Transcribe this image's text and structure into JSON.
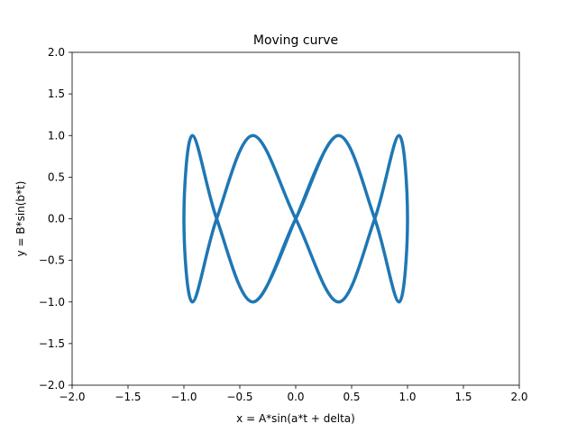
{
  "chart_data": {
    "type": "line",
    "title": "Moving curve",
    "xlabel": "x = A*sin(a*t + delta)",
    "ylabel": "y = B*sin(b*t)",
    "xlim": [
      -2.0,
      2.0
    ],
    "ylim": [
      -2.0,
      2.0
    ],
    "xticks": [
      -2.0,
      -1.5,
      -1.0,
      -0.5,
      0.0,
      0.5,
      1.0,
      1.5,
      2.0
    ],
    "xtick_labels": [
      "−2.0",
      "−1.5",
      "−1.0",
      "−0.5",
      "0.0",
      "0.5",
      "1.0",
      "1.5",
      "2.0"
    ],
    "yticks": [
      -2.0,
      -1.5,
      -1.0,
      -0.5,
      0.0,
      0.5,
      1.0,
      1.5,
      2.0
    ],
    "ytick_labels": [
      "−2.0",
      "−1.5",
      "−1.0",
      "−0.5",
      "0.0",
      "0.5",
      "1.0",
      "1.5",
      "2.0"
    ],
    "grid": false,
    "series": [
      {
        "color": "#1f77b4",
        "x": [
          0.0,
          0.383,
          0.707,
          0.924,
          1.0,
          0.924,
          0.707,
          0.383,
          0.0,
          -0.383,
          -0.707,
          -0.924,
          -1.0,
          -0.924,
          -0.707,
          -0.383,
          0.0,
          0.383,
          0.707,
          0.924,
          1.0,
          0.924,
          0.707,
          0.383,
          0.0,
          -0.383,
          -0.707,
          -0.924,
          -1.0,
          -0.924,
          -0.707,
          -0.383,
          0.0
        ],
        "y": [
          0.0,
          1.0,
          0.0,
          -1.0,
          0.0,
          1.0,
          0.0,
          -1.0,
          0.0,
          1.0,
          0.0,
          -1.0,
          0.0,
          1.0,
          0.0,
          -1.0,
          0.0,
          1.0,
          0.0,
          -1.0,
          0.0,
          1.0,
          0.0,
          -1.0,
          0.0,
          1.0,
          0.0,
          -1.0,
          0.0,
          1.0,
          0.0,
          -1.0,
          0.0
        ]
      }
    ]
  }
}
